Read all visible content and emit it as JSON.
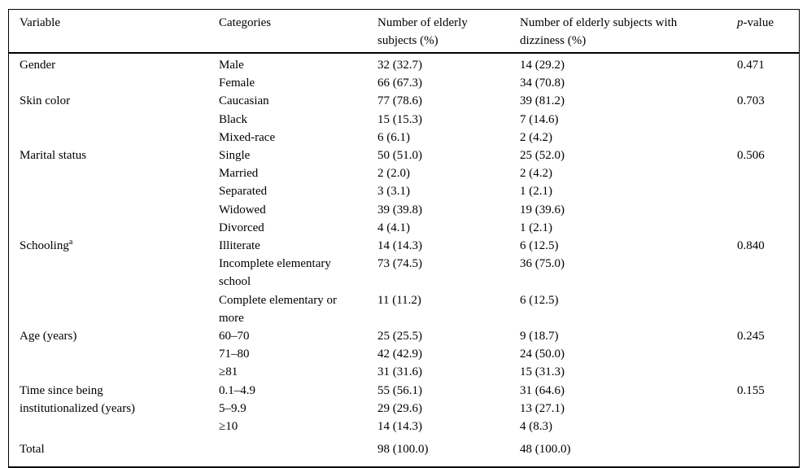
{
  "header": {
    "variable": "Variable",
    "categories": "Categories",
    "subjects": "Number of elderly subjects (%)",
    "dizziness": "Number of elderly subjects with dizziness (%)",
    "p_italic": "p",
    "p_rest": "-value"
  },
  "rows": [
    {
      "variable": "Gender",
      "category": "Male",
      "subjects": "32 (32.7)",
      "dizziness": "14 (29.2)",
      "p": "0.471"
    },
    {
      "category": "Female",
      "subjects": "66 (67.3)",
      "dizziness": "34 (70.8)"
    },
    {
      "variable": "Skin color",
      "category": "Caucasian",
      "subjects": "77 (78.6)",
      "dizziness": "39 (81.2)",
      "p": "0.703"
    },
    {
      "category": "Black",
      "subjects": "15 (15.3)",
      "dizziness": "7 (14.6)"
    },
    {
      "category": "Mixed-race",
      "subjects": "6 (6.1)",
      "dizziness": "2 (4.2)"
    },
    {
      "variable": "Marital status",
      "category": "Single",
      "subjects": "50 (51.0)",
      "dizziness": "25 (52.0)",
      "p": "0.506"
    },
    {
      "category": "Married",
      "subjects": "2 (2.0)",
      "dizziness": "2 (4.2)"
    },
    {
      "category": "Separated",
      "subjects": "3 (3.1)",
      "dizziness": "1 (2.1)"
    },
    {
      "category": "Widowed",
      "subjects": "39 (39.8)",
      "dizziness": "19 (39.6)"
    },
    {
      "category": "Divorced",
      "subjects": "4 (4.1)",
      "dizziness": "1 (2.1)"
    },
    {
      "variable": "Schooling",
      "variable_sup": "a",
      "category": "Illiterate",
      "subjects": "14 (14.3)",
      "dizziness": "6 (12.5)",
      "p": "0.840"
    },
    {
      "category": "Incomplete elementary school",
      "subjects": "73 (74.5)",
      "dizziness": "36 (75.0)"
    },
    {
      "category": "Complete elementary or more",
      "subjects": "11 (11.2)",
      "dizziness": "6 (12.5)"
    },
    {
      "variable": "Age (years)",
      "category": "60–70",
      "subjects": "25 (25.5)",
      "dizziness": "9 (18.7)",
      "p": "0.245"
    },
    {
      "category": "71–80",
      "subjects": "42 (42.9)",
      "dizziness": "24 (50.0)"
    },
    {
      "category": "≥81",
      "subjects": "31 (31.6)",
      "dizziness": "15 (31.3)"
    },
    {
      "variable": "Time since being institutionalized (years)",
      "category": "0.1–4.9",
      "subjects": "55 (56.1)",
      "dizziness": "31 (64.6)",
      "p": "0.155"
    },
    {
      "category": "5–9.9",
      "subjects": "29 (29.6)",
      "dizziness": "13 (27.1)"
    },
    {
      "category": "≥10",
      "subjects": "14 (14.3)",
      "dizziness": "4 (8.3)"
    },
    {
      "variable": "Total",
      "subjects": "98 (100.0)",
      "dizziness": "48 (100.0)"
    }
  ]
}
